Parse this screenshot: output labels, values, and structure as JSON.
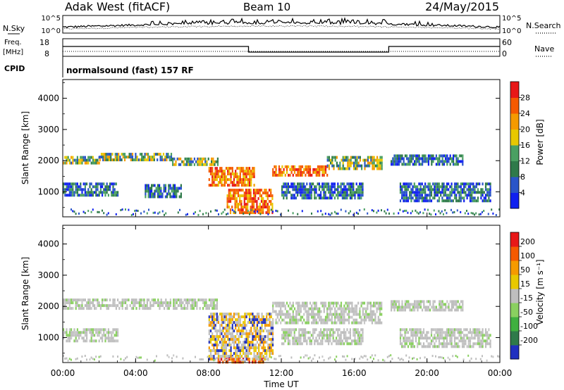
{
  "header": {
    "station": "Adak West (fitACF)",
    "beam": "Beam 10",
    "date": "24/May/2015"
  },
  "panels": {
    "nsky": {
      "left_label": "N.Sky",
      "left_ticks": [
        "10^5",
        "10^0"
      ],
      "right_ticks": [
        "10^5",
        "10^0"
      ],
      "right_label": "N.Search"
    },
    "freq": {
      "left_label_line1": "Freq.",
      "left_label_line2": "[MHz]",
      "left_ticks": [
        "18",
        "8"
      ],
      "right_ticks": [
        "60",
        "0"
      ],
      "right_label": "Nave"
    },
    "cpid": {
      "label": "CPID",
      "text": "normalsound (fast) 157 RF"
    }
  },
  "chart_data": [
    {
      "type": "heatmap",
      "panel": "power",
      "ylabel": "Slant Range [km]",
      "ylim": [
        200,
        4600
      ],
      "yticks": [
        "1000",
        "2000",
        "3000",
        "4000"
      ],
      "xlim": [
        0,
        24
      ],
      "colorbar": {
        "label": "Power [dB]",
        "tick_labels": [
          "4",
          "8",
          "12",
          "16",
          "20",
          "24",
          "28"
        ],
        "colors": [
          "#1020f0",
          "#2a55c8",
          "#2f7a4a",
          "#4aa062",
          "#e8c800",
          "#f59a00",
          "#f55a00",
          "#e81818"
        ]
      },
      "bands": [
        {
          "t": [
            0.0,
            2.0
          ],
          "range": [
            1950,
            2150
          ],
          "level": "medium"
        },
        {
          "t": [
            2.0,
            6.0
          ],
          "range": [
            2050,
            2250
          ],
          "level": "medium"
        },
        {
          "t": [
            6.0,
            8.5
          ],
          "range": [
            1850,
            2100
          ],
          "level": "medium"
        },
        {
          "t": [
            8.0,
            10.5
          ],
          "range": [
            1200,
            1800
          ],
          "level": "strong"
        },
        {
          "t": [
            9.0,
            11.5
          ],
          "range": [
            300,
            1100
          ],
          "level": "strong"
        },
        {
          "t": [
            11.5,
            14.5
          ],
          "range": [
            1500,
            1850
          ],
          "level": "strong"
        },
        {
          "t": [
            14.5,
            17.5
          ],
          "range": [
            1750,
            2150
          ],
          "level": "medium"
        },
        {
          "t": [
            18.0,
            22.0
          ],
          "range": [
            1850,
            2200
          ],
          "level": "weak"
        },
        {
          "t": [
            0.0,
            3.0
          ],
          "range": [
            900,
            1300
          ],
          "level": "weak"
        },
        {
          "t": [
            4.5,
            6.5
          ],
          "range": [
            800,
            1250
          ],
          "level": "weak"
        },
        {
          "t": [
            12.0,
            16.5
          ],
          "range": [
            800,
            1300
          ],
          "level": "weak"
        },
        {
          "t": [
            18.5,
            23.5
          ],
          "range": [
            750,
            1300
          ],
          "level": "weak"
        }
      ]
    },
    {
      "type": "heatmap",
      "panel": "velocity",
      "ylabel": "Slant Range [km]",
      "ylim": [
        200,
        4600
      ],
      "yticks": [
        "1000",
        "2000",
        "3000",
        "4000"
      ],
      "xlim": [
        0,
        24
      ],
      "colorbar": {
        "label": "Velocity [m s⁻¹]",
        "tick_labels": [
          "200",
          "100",
          "50",
          "15",
          "-15",
          "-50",
          "-100",
          "-200"
        ],
        "colors": [
          "#2030c0",
          "#2f7a4a",
          "#40b040",
          "#8ad060",
          "#bebebe",
          "#e8c800",
          "#f59a00",
          "#f55a00",
          "#e81818"
        ]
      },
      "bands": [
        {
          "t": [
            0.0,
            8.5
          ],
          "range": [
            1900,
            2250
          ],
          "level": "ground"
        },
        {
          "t": [
            8.0,
            11.5
          ],
          "range": [
            300,
            1800
          ],
          "level": "mixed"
        },
        {
          "t": [
            11.5,
            17.5
          ],
          "range": [
            1500,
            2150
          ],
          "level": "ground"
        },
        {
          "t": [
            18.0,
            22.0
          ],
          "range": [
            1850,
            2200
          ],
          "level": "ground"
        },
        {
          "t": [
            0.0,
            3.0
          ],
          "range": [
            900,
            1300
          ],
          "level": "ground"
        },
        {
          "t": [
            12.0,
            16.5
          ],
          "range": [
            800,
            1300
          ],
          "level": "ground"
        },
        {
          "t": [
            18.5,
            23.5
          ],
          "range": [
            750,
            1300
          ],
          "level": "ground"
        },
        {
          "t": [
            8.5,
            11.0
          ],
          "range": [
            200,
            350
          ],
          "level": "negative"
        }
      ]
    }
  ],
  "xaxis": {
    "label": "Time UT",
    "ticks": [
      "00:00",
      "04:00",
      "08:00",
      "12:00",
      "16:00",
      "20:00",
      "00:00"
    ]
  }
}
